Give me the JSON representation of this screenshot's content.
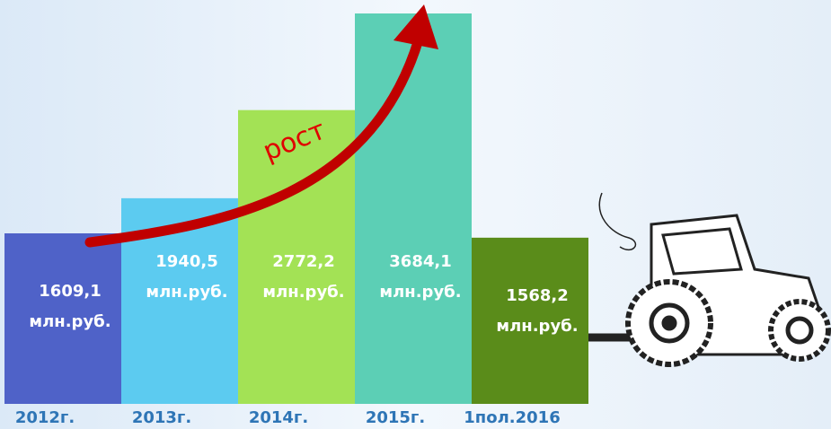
{
  "chart_data": {
    "type": "bar",
    "categories": [
      "2012г.",
      "2013г.",
      "2014г.",
      "2015г.",
      "1пол.2016"
    ],
    "values": [
      1609.1,
      1940.5,
      2772.2,
      3684.1,
      1568.2
    ],
    "value_labels": [
      "1609,1",
      "1940,5",
      "2772,2",
      "3684,1",
      "1568,2"
    ],
    "unit": "млн.руб.",
    "colors": [
      "#4f62c8",
      "#5ccbf0",
      "#a3e255",
      "#5ccfb5",
      "#5a8c1a"
    ],
    "annotation": "рост"
  }
}
